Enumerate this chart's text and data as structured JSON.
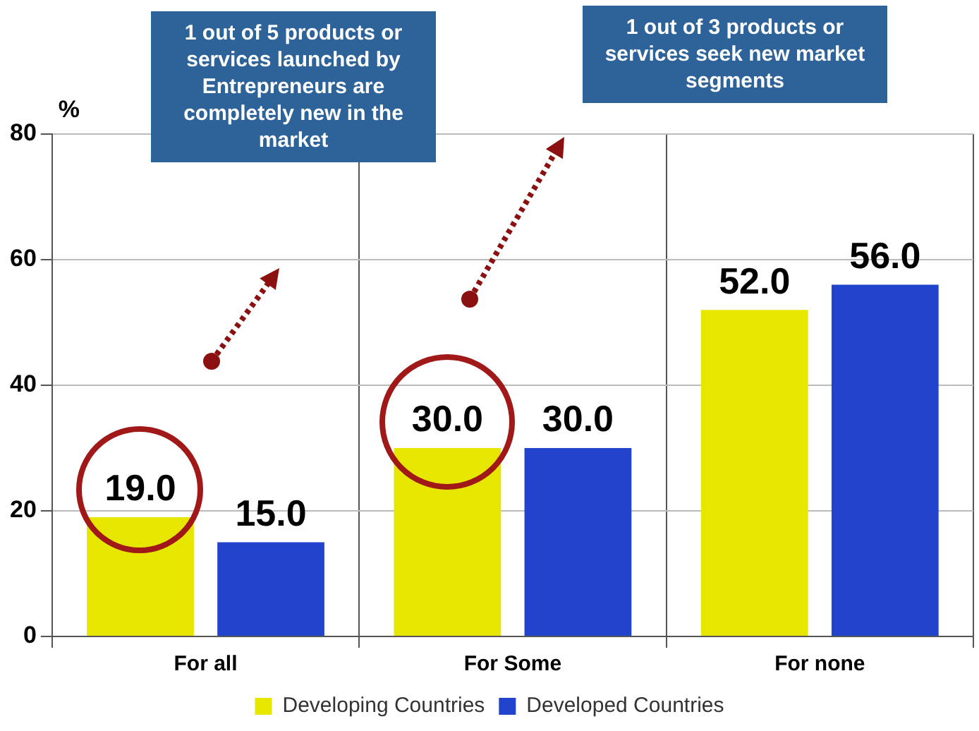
{
  "chart_data": {
    "type": "bar",
    "ylabel": "%",
    "categories": [
      "For all",
      "For Some",
      "For none"
    ],
    "series": [
      {
        "name": "Developing Countries",
        "color": "#e6e600",
        "values": [
          19.0,
          30.0,
          52.0
        ],
        "value_labels": [
          "19.0",
          "30.0",
          "52.0"
        ]
      },
      {
        "name": "Developed Countries",
        "color": "#2244cc",
        "values": [
          15.0,
          30.0,
          56.0
        ],
        "value_labels": [
          "15.0",
          "30.0",
          "56.0"
        ]
      }
    ],
    "ylim": [
      0,
      80
    ],
    "yticks": [
      0,
      20,
      40,
      60,
      80
    ],
    "grid": true,
    "legend": "bottom",
    "annotations": [
      "1 out of 5 products or services launched by Entrepreneurs are completely new in the market",
      "1 out of 3 products or services seek new market segments"
    ]
  }
}
